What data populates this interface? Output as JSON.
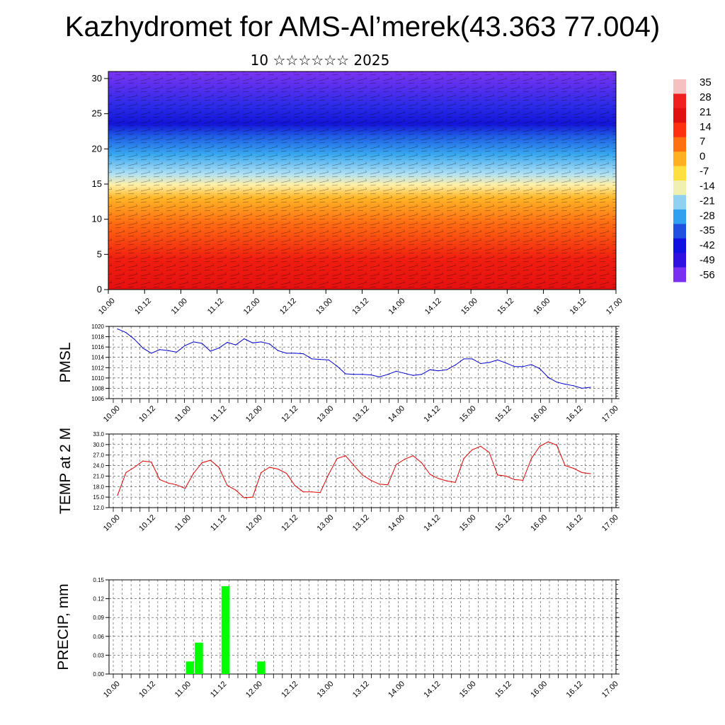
{
  "title": "Kazhydromet for AMS-Al’merek(43.363 77.004)",
  "subtitle": "10 ☆☆☆☆☆☆ 2025",
  "chart_data": [
    {
      "type": "heatmap",
      "name": "cross-section",
      "x_ticks": [
        "10.00",
        "10.12",
        "11.00",
        "11.12",
        "12.00",
        "12.12",
        "13.00",
        "13.12",
        "14.00",
        "14.12",
        "15.00",
        "15.12",
        "16.00",
        "16.12",
        "17.00"
      ],
      "y_ticks": [
        0,
        5,
        10,
        15,
        20,
        25,
        30
      ],
      "ylim": [
        0,
        31
      ],
      "colorbar": {
        "labels": [
          "35",
          "28",
          "21",
          "14",
          "7",
          "0",
          "-7",
          "-14",
          "-21",
          "-28",
          "-35",
          "-42",
          "-49",
          "-56"
        ],
        "colors": [
          "#f4c0c0",
          "#ee2020",
          "#e01010",
          "#ff3010",
          "#ff7010",
          "#ffb020",
          "#ffe040",
          "#f0f0b0",
          "#90d0f0",
          "#30a0f0",
          "#2050e0",
          "#1010e0",
          "#3010e0",
          "#7a30f0"
        ]
      }
    },
    {
      "type": "line",
      "ylabel": "PMSL",
      "ylim": [
        1006,
        1020
      ],
      "y_ticks": [
        "1006",
        "1008",
        "1010",
        "1012",
        "1014",
        "1016",
        "1018",
        "1020"
      ],
      "x_ticks": [
        "10.00",
        "10.12",
        "11.00",
        "11.12",
        "12.00",
        "12.12",
        "13.00",
        "13.12",
        "14.00",
        "14.12",
        "15.00",
        "15.12",
        "16.00",
        "16.12",
        "17.00"
      ],
      "color": "#0000cc",
      "values": [
        1019.5,
        1018.8,
        1017.5,
        1015.8,
        1014.8,
        1015.5,
        1015.3,
        1015.0,
        1016.3,
        1017.0,
        1016.7,
        1015.2,
        1015.8,
        1016.9,
        1016.4,
        1017.6,
        1016.8,
        1017.0,
        1016.6,
        1015.3,
        1014.8,
        1014.8,
        1014.7,
        1013.7,
        1013.6,
        1013.5,
        1012.3,
        1010.8,
        1010.7,
        1010.7,
        1010.6,
        1010.2,
        1010.7,
        1011.3,
        1010.9,
        1010.5,
        1010.7,
        1011.6,
        1011.4,
        1011.6,
        1012.5,
        1013.7,
        1013.7,
        1012.8,
        1013.0,
        1013.5,
        1012.9,
        1012.2,
        1012.2,
        1012.6,
        1011.8,
        1010.1,
        1009.2,
        1008.8,
        1008.5,
        1008.0,
        1008.2
      ]
    },
    {
      "type": "line",
      "ylabel": "TEMP at 2 M",
      "ylim": [
        12,
        33
      ],
      "y_ticks": [
        "12.0",
        "15.0",
        "18.0",
        "21.0",
        "24.0",
        "27.0",
        "30.0",
        "33.0"
      ],
      "x_ticks": [
        "10.00",
        "10.12",
        "11.00",
        "11.12",
        "12.00",
        "12.12",
        "13.00",
        "13.12",
        "14.00",
        "14.12",
        "15.00",
        "15.12",
        "16.00",
        "16.12",
        "17.00"
      ],
      "color": "#dd0000",
      "values": [
        15.5,
        22.0,
        23.5,
        25.3,
        25.0,
        20.0,
        19.0,
        18.5,
        17.5,
        21.8,
        24.8,
        25.5,
        23.5,
        18.3,
        17.0,
        14.8,
        15.0,
        22.0,
        23.5,
        23.0,
        21.8,
        18.3,
        16.5,
        16.5,
        16.3,
        21.5,
        26.0,
        26.8,
        24.0,
        21.3,
        19.8,
        18.7,
        18.5,
        24.3,
        25.8,
        26.8,
        24.8,
        21.5,
        20.3,
        19.6,
        19.2,
        26.0,
        28.5,
        29.5,
        27.8,
        21.3,
        21.0,
        20.0,
        19.8,
        26.0,
        29.5,
        30.8,
        29.8,
        24.0,
        23.2,
        22.0,
        21.7
      ]
    },
    {
      "type": "bar",
      "ylabel": "PRECIP, mm",
      "ylim": [
        0,
        0.15
      ],
      "y_ticks": [
        "0.00",
        "0.03",
        "0.06",
        "0.09",
        "0.12",
        "0.15"
      ],
      "x_ticks": [
        "10.00",
        "10.12",
        "11.00",
        "11.12",
        "12.00",
        "12.12",
        "13.00",
        "13.12",
        "14.00",
        "14.12",
        "15.00",
        "15.12",
        "16.00",
        "16.12",
        "17.00"
      ],
      "color": "#00ff00",
      "bars": [
        {
          "x": 8,
          "value": 0.02
        },
        {
          "x": 9,
          "value": 0.05
        },
        {
          "x": 12,
          "value": 0.14
        },
        {
          "x": 16,
          "value": 0.02
        }
      ]
    }
  ]
}
